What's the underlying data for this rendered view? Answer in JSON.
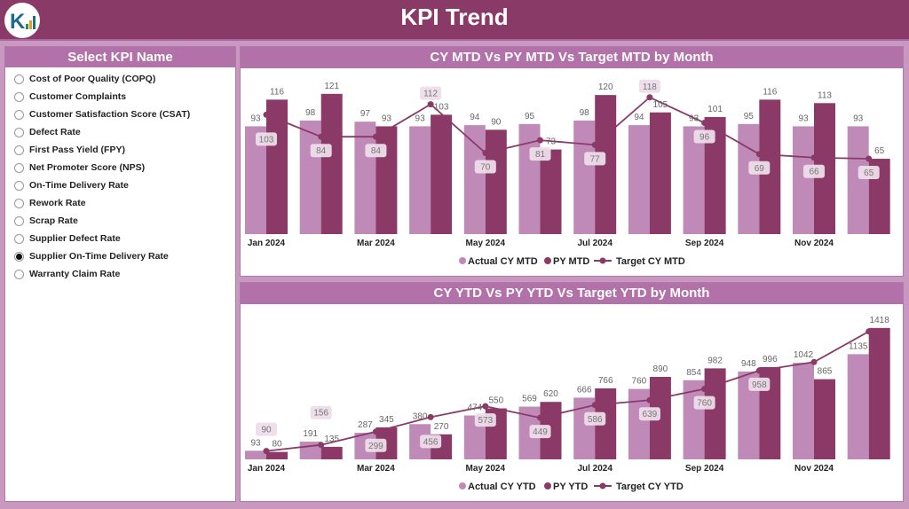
{
  "header": {
    "title": "KPI Trend",
    "logo_text": "K"
  },
  "sidebar": {
    "title": "Select KPI Name",
    "items": [
      {
        "label": "Cost of Poor Quality (COPQ)",
        "selected": false
      },
      {
        "label": "Customer Complaints",
        "selected": false
      },
      {
        "label": "Customer Satisfaction Score (CSAT)",
        "selected": false
      },
      {
        "label": "Defect Rate",
        "selected": false
      },
      {
        "label": "First Pass Yield (FPY)",
        "selected": false
      },
      {
        "label": "Net Promoter Score (NPS)",
        "selected": false
      },
      {
        "label": "On-Time Delivery Rate",
        "selected": false
      },
      {
        "label": "Rework Rate",
        "selected": false
      },
      {
        "label": "Scrap Rate",
        "selected": false
      },
      {
        "label": "Supplier Defect Rate",
        "selected": false
      },
      {
        "label": "Supplier On-Time Delivery Rate",
        "selected": true
      },
      {
        "label": "Warranty Claim Rate",
        "selected": false
      }
    ]
  },
  "colors": {
    "header": "#8a3a66",
    "actual": "#c08ab8",
    "py": "#8b3a68",
    "target": "#8b3a68",
    "panel_title": "#b271a8"
  },
  "chart_data": [
    {
      "type": "bar",
      "title": "CY MTD Vs PY MTD Vs Target MTD by Month",
      "x_tick_labels": [
        "Jan 2024",
        "Mar 2024",
        "May 2024",
        "Jul 2024",
        "Sep 2024",
        "Nov 2024"
      ],
      "ylim": [
        0,
        140
      ],
      "grid": false,
      "legend_position": "bottom",
      "series": [
        {
          "name": "Actual CY MTD",
          "kind": "bar",
          "values": [
            93,
            98,
            97,
            93,
            94,
            95,
            98,
            94,
            93,
            95,
            93,
            93
          ]
        },
        {
          "name": "PY MTD",
          "kind": "bar",
          "values": [
            116,
            121,
            93,
            103,
            90,
            73,
            120,
            105,
            101,
            116,
            113,
            65
          ]
        },
        {
          "name": "Target CY MTD",
          "kind": "line",
          "values": [
            103,
            84,
            84,
            112,
            70,
            81,
            77,
            118,
            96,
            69,
            66,
            65
          ]
        }
      ]
    },
    {
      "type": "bar",
      "title": "CY YTD Vs PY YTD Vs Target YTD by Month",
      "x_tick_labels": [
        "Jan 2024",
        "Mar 2024",
        "May 2024",
        "Jul 2024",
        "Sep 2024",
        "Nov 2024"
      ],
      "ylim": [
        0,
        1560
      ],
      "grid": false,
      "legend_position": "bottom",
      "series": [
        {
          "name": "Actual CY YTD",
          "kind": "bar",
          "values": [
            93,
            191,
            287,
            380,
            474,
            569,
            666,
            760,
            854,
            948,
            1042,
            1135
          ]
        },
        {
          "name": "PY YTD",
          "kind": "bar",
          "values": [
            80,
            135,
            345,
            270,
            550,
            620,
            766,
            890,
            982,
            996,
            865,
            1418
          ]
        },
        {
          "name": "Target CY YTD",
          "kind": "line",
          "values": [
            90,
            156,
            299,
            456,
            573,
            449,
            586,
            639,
            760,
            958,
            1050,
            1380
          ],
          "labels_shown": [
            true,
            true,
            true,
            true,
            true,
            true,
            true,
            true,
            true,
            true,
            false,
            false
          ]
        }
      ]
    }
  ]
}
